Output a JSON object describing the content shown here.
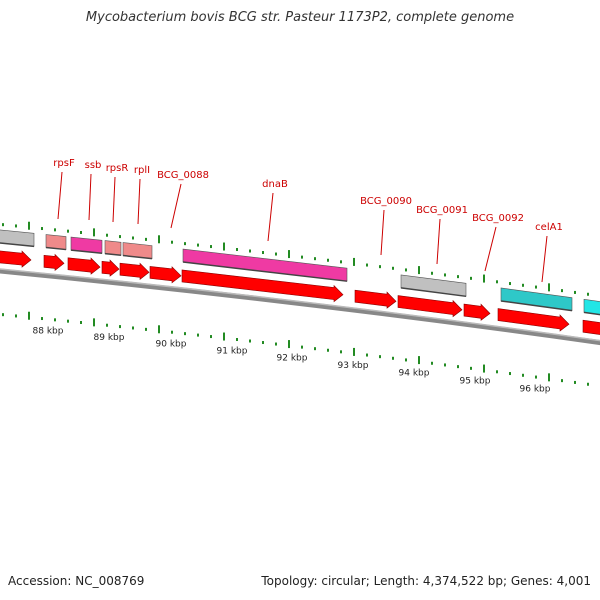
{
  "title": "Mycobacterium bovis BCG str. Pasteur 1173P2, complete genome",
  "footer": {
    "accession": "Accession: NC_008769",
    "summary": "Topology: circular; Length: 4,374,522 bp; Genes: 4,001"
  },
  "colors": {
    "cds": "#ff0000",
    "backbone": "#888888",
    "tick": "#228b22",
    "gene_label": "#cc0000",
    "kbp_label": "#222222"
  },
  "scale": {
    "unit": "kbp",
    "labels": [
      "88 kbp",
      "89 kbp",
      "90 kbp",
      "91 kbp",
      "92 kbp",
      "93 kbp",
      "94 kbp",
      "95 kbp",
      "96 kbp"
    ]
  },
  "genes": [
    {
      "name": "",
      "kind": "other",
      "color": "#c0c0c0"
    },
    {
      "name": "rpsF",
      "kind": "rrna",
      "color": "#ef8a8a"
    },
    {
      "name": "ssb",
      "kind": "replication",
      "color": "#ef3aa3"
    },
    {
      "name": "rpsR",
      "kind": "rrna",
      "color": "#ef8a8a"
    },
    {
      "name": "rplI",
      "kind": "rrna",
      "color": "#ef8a8a"
    },
    {
      "name": "BCG_0088",
      "kind": "",
      "color": ""
    },
    {
      "name": "dnaB",
      "kind": "replication",
      "color": "#ef3aa3"
    },
    {
      "name": "BCG_0090",
      "kind": "",
      "color": ""
    },
    {
      "name": "BCG_0091",
      "kind": "other",
      "color": "#c0c0c0"
    },
    {
      "name": "BCG_0092",
      "kind": "",
      "color": ""
    },
    {
      "name": "celA1",
      "kind": "metabolism",
      "color": "#2ec8c8"
    },
    {
      "name": "",
      "kind": "metabolism",
      "color": "#22e6e6"
    }
  ]
}
